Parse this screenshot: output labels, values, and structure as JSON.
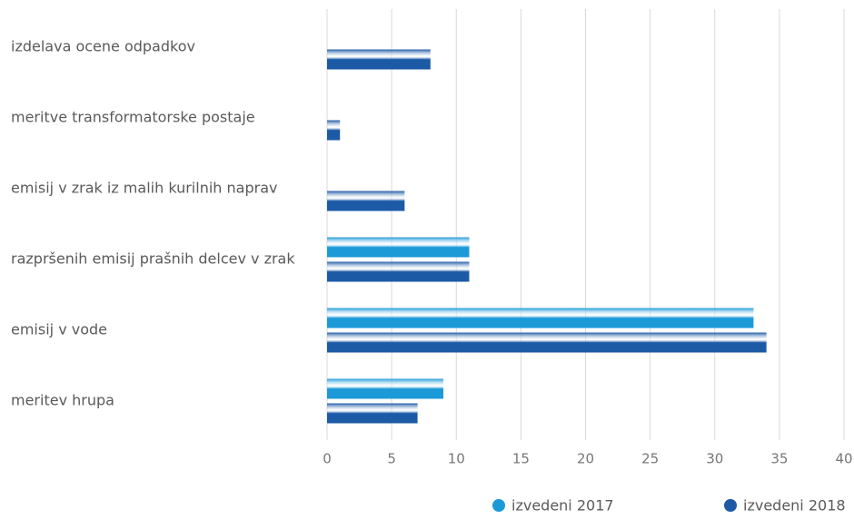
{
  "chart_data": {
    "type": "hbar",
    "categories": [
      "izdelava ocene odpadkov",
      "meritve transformatorske postaje",
      "emisij v zrak iz malih kurilnih naprav",
      "razpršenih emisij prašnih delcev v zrak",
      "emisij v vode",
      "meritev hrupa"
    ],
    "series": [
      {
        "name": "izvedeni 2017",
        "color": "#1c9ad8",
        "values": [
          null,
          null,
          null,
          11,
          33,
          9
        ]
      },
      {
        "name": "izvedeni 2018",
        "color": "#1d5aa6",
        "values": [
          8,
          1,
          6,
          11,
          34,
          7
        ]
      }
    ],
    "xlim": [
      0,
      40
    ],
    "xticks": [
      0,
      5,
      10,
      15,
      20,
      25,
      30,
      35,
      40
    ],
    "grid": true,
    "legend": "bottom"
  }
}
